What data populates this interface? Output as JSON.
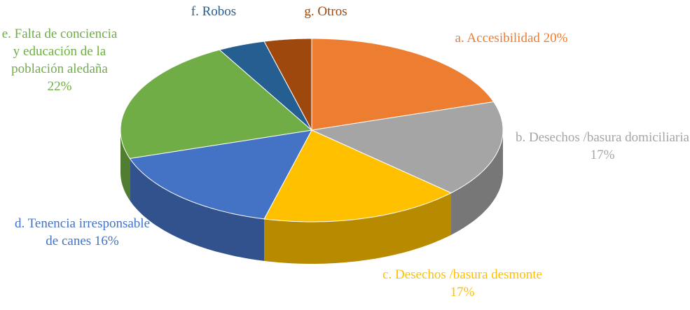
{
  "chart_data": {
    "type": "pie3d",
    "categories": [
      "a. Accesibilidad",
      "b. Desechos /basura domiciliaria",
      "c. Desechos /basura desmonte",
      "d. Tenencia irresponsable de canes",
      "e. Falta de conciencia y educación de la población aledaña",
      "f. Robos",
      "g. Otros"
    ],
    "values": [
      20,
      17,
      17,
      16,
      22,
      4,
      4
    ],
    "value_labels": [
      "20%",
      "17%",
      "17%",
      "16%",
      "22%",
      null,
      null
    ],
    "colors": [
      "#ed7d31",
      "#a5a5a5",
      "#ffc000",
      "#4472c4",
      "#70ad47",
      "#255e91",
      "#9e480e"
    ]
  }
}
